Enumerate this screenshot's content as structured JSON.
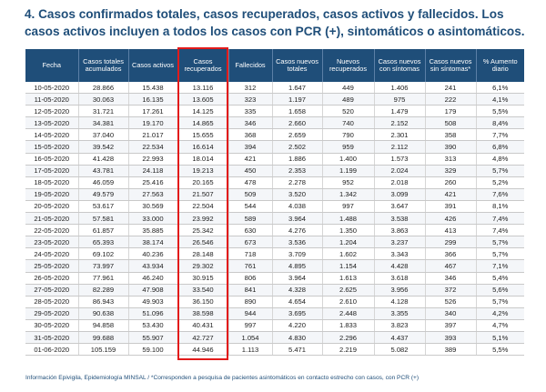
{
  "title": "4. Casos confirmados totales, casos recuperados, casos activos y fallecidos. Los casos activos incluyen a todos los casos con PCR (+), sintomáticos o asintomáticos.",
  "table": {
    "headers": [
      "Fecha",
      "Casos totales acumulados",
      "Casos activos",
      "Casos recuperados",
      "Fallecidos",
      "Casos nuevos totales",
      "Nuevos recuperados",
      "Casos nuevos con síntomas",
      "Casos nuevos sin síntomas*",
      "% Aumento diario"
    ],
    "rows": [
      [
        "10-05-2020",
        "28.866",
        "15.438",
        "13.116",
        "312",
        "1.647",
        "449",
        "1.406",
        "241",
        "6,1%"
      ],
      [
        "11-05-2020",
        "30.063",
        "16.135",
        "13.605",
        "323",
        "1.197",
        "489",
        "975",
        "222",
        "4,1%"
      ],
      [
        "12-05-2020",
        "31.721",
        "17.261",
        "14.125",
        "335",
        "1.658",
        "520",
        "1.479",
        "179",
        "5,5%"
      ],
      [
        "13-05-2020",
        "34.381",
        "19.170",
        "14.865",
        "346",
        "2.660",
        "740",
        "2.152",
        "508",
        "8,4%"
      ],
      [
        "14-05-2020",
        "37.040",
        "21.017",
        "15.655",
        "368",
        "2.659",
        "790",
        "2.301",
        "358",
        "7,7%"
      ],
      [
        "15-05-2020",
        "39.542",
        "22.534",
        "16.614",
        "394",
        "2.502",
        "959",
        "2.112",
        "390",
        "6,8%"
      ],
      [
        "16-05-2020",
        "41.428",
        "22.993",
        "18.014",
        "421",
        "1.886",
        "1.400",
        "1.573",
        "313",
        "4,8%"
      ],
      [
        "17-05-2020",
        "43.781",
        "24.118",
        "19.213",
        "450",
        "2.353",
        "1.199",
        "2.024",
        "329",
        "5,7%"
      ],
      [
        "18-05-2020",
        "46.059",
        "25.416",
        "20.165",
        "478",
        "2.278",
        "952",
        "2.018",
        "260",
        "5,2%"
      ],
      [
        "19-05-2020",
        "49.579",
        "27.563",
        "21.507",
        "509",
        "3.520",
        "1.342",
        "3.099",
        "421",
        "7,6%"
      ],
      [
        "20-05-2020",
        "53.617",
        "30.569",
        "22.504",
        "544",
        "4.038",
        "997",
        "3.647",
        "391",
        "8,1%"
      ],
      [
        "21-05-2020",
        "57.581",
        "33.000",
        "23.992",
        "589",
        "3.964",
        "1.488",
        "3.538",
        "426",
        "7,4%"
      ],
      [
        "22-05-2020",
        "61.857",
        "35.885",
        "25.342",
        "630",
        "4.276",
        "1.350",
        "3.863",
        "413",
        "7,4%"
      ],
      [
        "23-05-2020",
        "65.393",
        "38.174",
        "26.546",
        "673",
        "3.536",
        "1.204",
        "3.237",
        "299",
        "5,7%"
      ],
      [
        "24-05-2020",
        "69.102",
        "40.236",
        "28.148",
        "718",
        "3.709",
        "1.602",
        "3.343",
        "366",
        "5,7%"
      ],
      [
        "25-05-2020",
        "73.997",
        "43.934",
        "29.302",
        "761",
        "4.895",
        "1.154",
        "4.428",
        "467",
        "7,1%"
      ],
      [
        "26-05-2020",
        "77.961",
        "46.240",
        "30.915",
        "806",
        "3.964",
        "1.613",
        "3.618",
        "346",
        "5,4%"
      ],
      [
        "27-05-2020",
        "82.289",
        "47.908",
        "33.540",
        "841",
        "4.328",
        "2.625",
        "3.956",
        "372",
        "5,6%"
      ],
      [
        "28-05-2020",
        "86.943",
        "49.903",
        "36.150",
        "890",
        "4.654",
        "2.610",
        "4.128",
        "526",
        "5,7%"
      ],
      [
        "29-05-2020",
        "90.638",
        "51.096",
        "38.598",
        "944",
        "3.695",
        "2.448",
        "3.355",
        "340",
        "4,2%"
      ],
      [
        "30-05-2020",
        "94.858",
        "53.430",
        "40.431",
        "997",
        "4.220",
        "1.833",
        "3.823",
        "397",
        "4,7%"
      ],
      [
        "31-05-2020",
        "99.688",
        "55.907",
        "42.727",
        "1.054",
        "4.830",
        "2.296",
        "4.437",
        "393",
        "5,1%"
      ],
      [
        "01-06-2020",
        "105.159",
        "59.100",
        "44.946",
        "1.113",
        "5.471",
        "2.219",
        "5.082",
        "389",
        "5,5%"
      ]
    ]
  },
  "footnote": "Información Epivigila, Epidemiología MINSAL / *Corresponden a pesquisa de pacientes asintomáticos en contacto estrecho con casos, con PCR (+)",
  "colors": {
    "header_bg": "#1f4e79",
    "title": "#1f4e79",
    "highlight_border": "#e21a1a"
  }
}
